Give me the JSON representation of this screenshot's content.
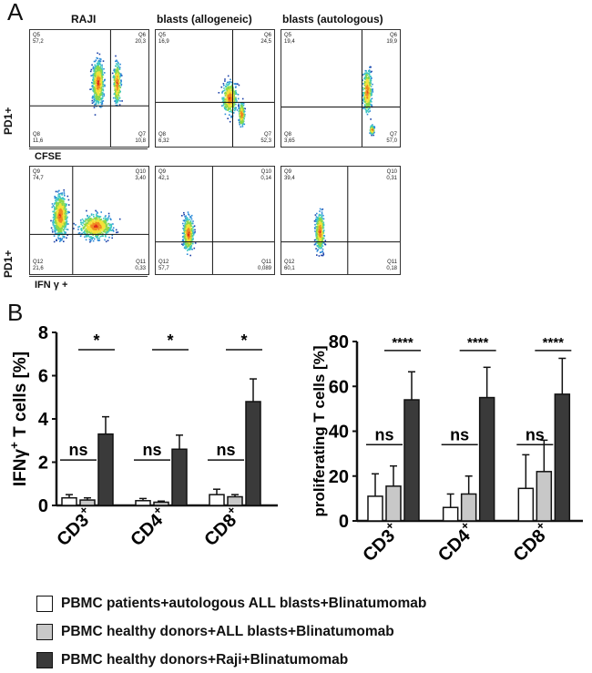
{
  "panelA": {
    "letter": "A",
    "columns": [
      "RAJI",
      "blasts (allogeneic)",
      "blasts (autologous)"
    ],
    "row_labels": [
      "PD1+",
      "PD1+"
    ],
    "x_labels": [
      "CFSE",
      "IFN γ +"
    ],
    "rows": [
      {
        "plots": [
          {
            "q": {
              "Q5": "57,2",
              "Q6": "20,3",
              "Q8": "11,6",
              "Q7": "10,8"
            }
          },
          {
            "q": {
              "Q5": "16,9",
              "Q6": "24,5",
              "Q8": "6,32",
              "Q7": "52,3"
            }
          },
          {
            "q": {
              "Q5": "19,4",
              "Q6": "19,9",
              "Q8": "3,65",
              "Q7": "57,0"
            }
          }
        ],
        "quad_names": [
          "Q5",
          "Q6",
          "Q8",
          "Q7"
        ]
      },
      {
        "plots": [
          {
            "q": {
              "Q9": "74,7",
              "Q10": "3,40",
              "Q12": "21,6",
              "Q11": "0,33"
            }
          },
          {
            "q": {
              "Q9": "42,1",
              "Q10": "0,14",
              "Q12": "57,7",
              "Q11": "0,089"
            }
          },
          {
            "q": {
              "Q9": "39,4",
              "Q10": "0,31",
              "Q12": "60,1",
              "Q11": "0,18"
            }
          }
        ],
        "quad_names": [
          "Q9",
          "Q10",
          "Q12",
          "Q11"
        ]
      }
    ]
  },
  "panelB": {
    "letter": "B"
  },
  "chart_data": [
    {
      "type": "bar",
      "ylabel": "IFNγ+ T cells [%]",
      "ylabel_main": "IFNγ",
      "ylabel_sup": "+",
      "ylabel_rest": " T cells [%]",
      "ylim": [
        0,
        8
      ],
      "yticks": [
        "0",
        "2",
        "4",
        "6",
        "8"
      ],
      "ytick_values": [
        0,
        2,
        4,
        6,
        8
      ],
      "categories": [
        "CD3+",
        "CD4+",
        "CD8+"
      ],
      "cat_main": [
        "CD3",
        "CD4",
        "CD8"
      ],
      "cat_sup": [
        "+",
        "+",
        "+"
      ],
      "series": [
        {
          "name": "PBMC patients+autologous ALL blasts+Blinatumomab",
          "values": [
            0.35,
            0.22,
            0.5
          ],
          "errors": [
            0.15,
            0.1,
            0.25
          ]
        },
        {
          "name": "PBMC healthy donors+ALL blasts+Blinatumomab",
          "values": [
            0.25,
            0.15,
            0.4
          ],
          "errors": [
            0.1,
            0.05,
            0.1
          ]
        },
        {
          "name": "PBMC healthy donors+Raji+Blinatumomab",
          "values": [
            3.3,
            2.6,
            4.8
          ],
          "errors": [
            0.8,
            0.65,
            1.05
          ]
        }
      ],
      "annotations": [
        {
          "group": 0,
          "ns": "ns",
          "sig": "*"
        },
        {
          "group": 1,
          "ns": "ns",
          "sig": "*"
        },
        {
          "group": 2,
          "ns": "ns",
          "sig": "*"
        }
      ]
    },
    {
      "type": "bar",
      "ylabel": "proliferating T cells [%]",
      "ylim": [
        0,
        80
      ],
      "yticks": [
        "0",
        "20",
        "40",
        "60",
        "80"
      ],
      "ytick_values": [
        0,
        20,
        40,
        60,
        80
      ],
      "categories": [
        "CD3+",
        "CD4+",
        "CD8+"
      ],
      "cat_main": [
        "CD3",
        "CD4",
        "CD8"
      ],
      "cat_sup": [
        "+",
        "+",
        "+"
      ],
      "series": [
        {
          "name": "PBMC patients+autologous ALL blasts+Blinatumomab",
          "values": [
            11,
            6,
            14.5
          ],
          "errors": [
            10,
            6,
            15
          ]
        },
        {
          "name": "PBMC healthy donors+ALL blasts+Blinatumomab",
          "values": [
            15.5,
            12,
            22
          ],
          "errors": [
            9,
            8,
            14
          ]
        },
        {
          "name": "PBMC healthy donors+Raji+Blinatumomab",
          "values": [
            54,
            55,
            56.5
          ],
          "errors": [
            12.5,
            13.5,
            16
          ]
        }
      ],
      "annotations": [
        {
          "group": 0,
          "ns": "ns",
          "sig": "****"
        },
        {
          "group": 1,
          "ns": "ns",
          "sig": "****"
        },
        {
          "group": 2,
          "ns": "ns",
          "sig": "****"
        }
      ]
    }
  ],
  "legend": {
    "items": [
      {
        "label": "PBMC patients+autologous ALL blasts+Blinatumomab",
        "color": "#ffffff"
      },
      {
        "label": "PBMC healthy donors+ALL blasts+Blinatumomab",
        "color": "#c8c8c8"
      },
      {
        "label": "PBMC healthy donors+Raji+Blinatumomab",
        "color": "#3a3a3a"
      }
    ]
  }
}
